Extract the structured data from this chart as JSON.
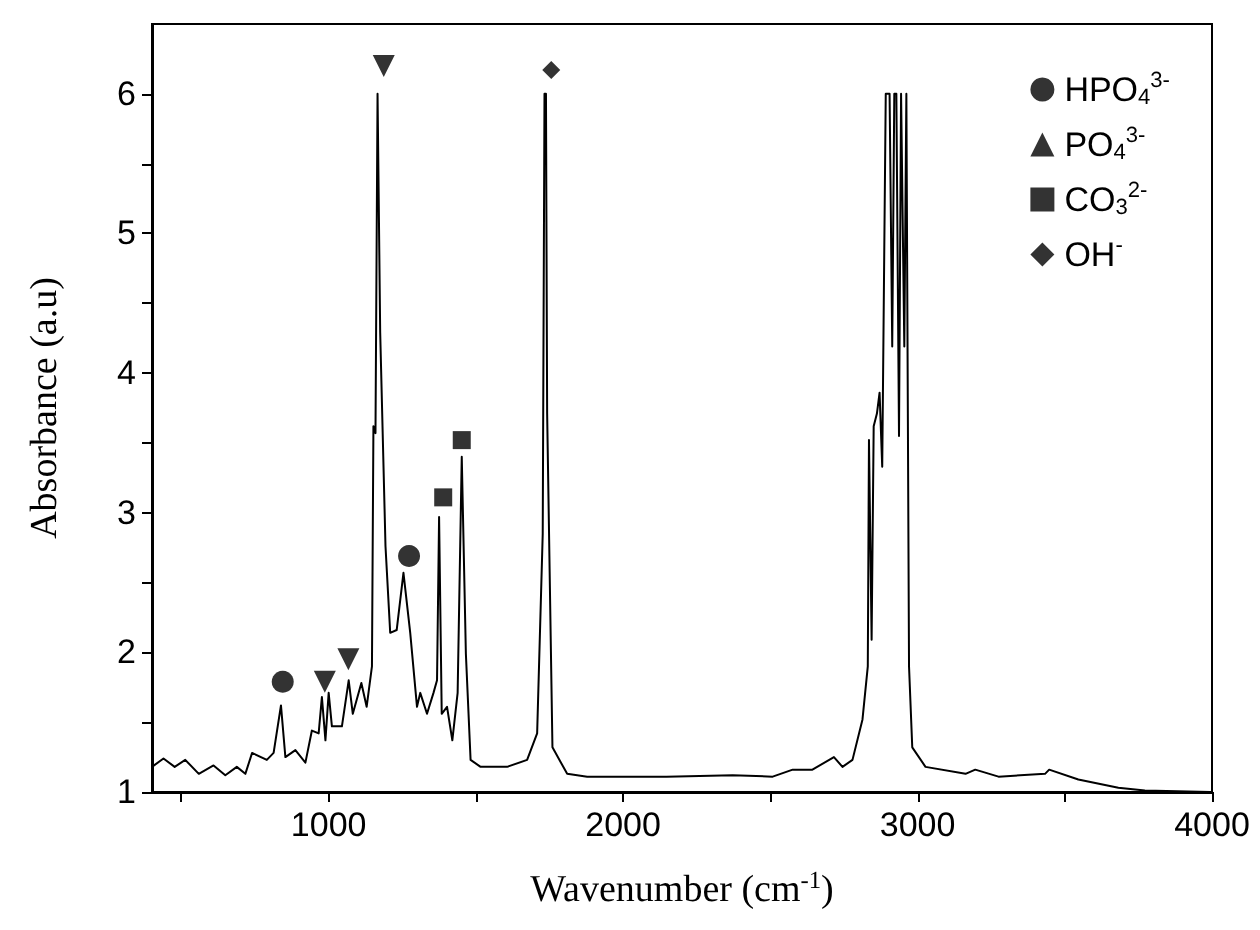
{
  "chart_data": {
    "type": "line",
    "xlabel": "Wavenumber (cm$^{-1}$)",
    "ylabel": "Absorbance (a.u)",
    "xlim": [
      400,
      4000
    ],
    "ylim": [
      1,
      6.5
    ],
    "xticks": [
      {
        "value": 500,
        "label": null
      },
      1000,
      {
        "value": 1500,
        "label": null
      },
      2000,
      {
        "value": 2500,
        "label": null
      },
      3000,
      {
        "value": 3500,
        "label": null
      },
      4000
    ],
    "yticks": [
      1,
      {
        "value": 1.5,
        "label": null
      },
      2,
      {
        "value": 2.5,
        "label": null
      },
      3,
      {
        "value": 3.5,
        "label": null
      },
      4,
      {
        "value": 4.5,
        "label": null
      },
      5,
      {
        "value": 5.5,
        "label": null
      },
      6
    ],
    "grid": false,
    "legend": "top right",
    "line_style": "solid",
    "series": [
      {
        "color": "#000000",
        "marker": "none",
        "x": [
          400,
          439,
          477,
          513,
          559,
          609,
          649,
          688,
          717,
          740,
          790,
          813,
          838,
          853,
          887,
          921,
          943,
          966,
          977,
          989,
          1000,
          1011,
          1045,
          1068,
          1082,
          1111,
          1129,
          1147,
          1152,
          1159,
          1166,
          1175,
          1193,
          1209,
          1231,
          1254,
          1277,
          1300,
          1311,
          1334,
          1356,
          1368,
          1375,
          1384,
          1402,
          1420,
          1438,
          1452,
          1466,
          1482,
          1516,
          1606,
          1674,
          1708,
          1727,
          1733,
          1738,
          1742,
          1760,
          1810,
          1878,
          2060,
          2147,
          2372,
          2508,
          2576,
          2643,
          2716,
          2745,
          2779,
          2813,
          2831,
          2835,
          2844,
          2851,
          2862,
          2871,
          2880,
          2892,
          2905,
          2914,
          2921,
          2928,
          2937,
          2944,
          2955,
          2962,
          2971,
          2982,
          3027,
          3163,
          3196,
          3275,
          3433,
          3447,
          3546,
          3682,
          3772,
          3993
        ],
        "values": [
          1.18,
          1.24,
          1.18,
          1.23,
          1.13,
          1.19,
          1.12,
          1.18,
          1.13,
          1.28,
          1.23,
          1.28,
          1.62,
          1.25,
          1.3,
          1.21,
          1.44,
          1.42,
          1.68,
          1.37,
          1.71,
          1.47,
          1.47,
          1.8,
          1.56,
          1.78,
          1.61,
          1.9,
          3.62,
          3.57,
          6.0,
          4.29,
          2.76,
          2.14,
          2.16,
          2.57,
          2.14,
          1.61,
          1.71,
          1.56,
          1.71,
          1.8,
          2.97,
          1.56,
          1.61,
          1.37,
          1.71,
          3.4,
          1.99,
          1.23,
          1.18,
          1.18,
          1.23,
          1.42,
          2.85,
          6.0,
          6.0,
          3.71,
          1.32,
          1.13,
          1.11,
          1.11,
          1.11,
          1.12,
          1.11,
          1.16,
          1.16,
          1.25,
          1.18,
          1.23,
          1.52,
          1.9,
          3.52,
          2.09,
          3.62,
          3.71,
          3.86,
          3.33,
          6.0,
          6.0,
          4.19,
          6.0,
          6.0,
          3.55,
          6.0,
          4.19,
          6.0,
          1.9,
          1.32,
          1.18,
          1.13,
          1.16,
          1.11,
          1.13,
          1.16,
          1.09,
          1.03,
          1.01,
          1.0
        ]
      },
      {
        "type": "scatter",
        "name": "HPO$_{4}$$^{3-}$",
        "color": "#000000",
        "marker": "circle",
        "x": [
          844,
          1273
        ],
        "values": [
          1.79,
          2.69
        ]
      },
      {
        "type": "scatter",
        "name": "PO$_{4}$$^{3-}$",
        "color": "#000000",
        "marker": "triangle",
        "x": [
          1187,
          987,
          1067
        ],
        "values": [
          6.2,
          1.79,
          1.95
        ]
      },
      {
        "type": "scatter",
        "name": "CO$_{3}$$^{2-}$",
        "color": "#000000",
        "marker": "square",
        "x": [
          1389,
          1452
        ],
        "values": [
          3.11,
          3.52
        ]
      },
      {
        "type": "scatter",
        "name": "OH$^{-}$",
        "color": "#000000",
        "marker": "diamond",
        "x": [
          1756
        ],
        "values": [
          6.17
        ]
      }
    ]
  }
}
